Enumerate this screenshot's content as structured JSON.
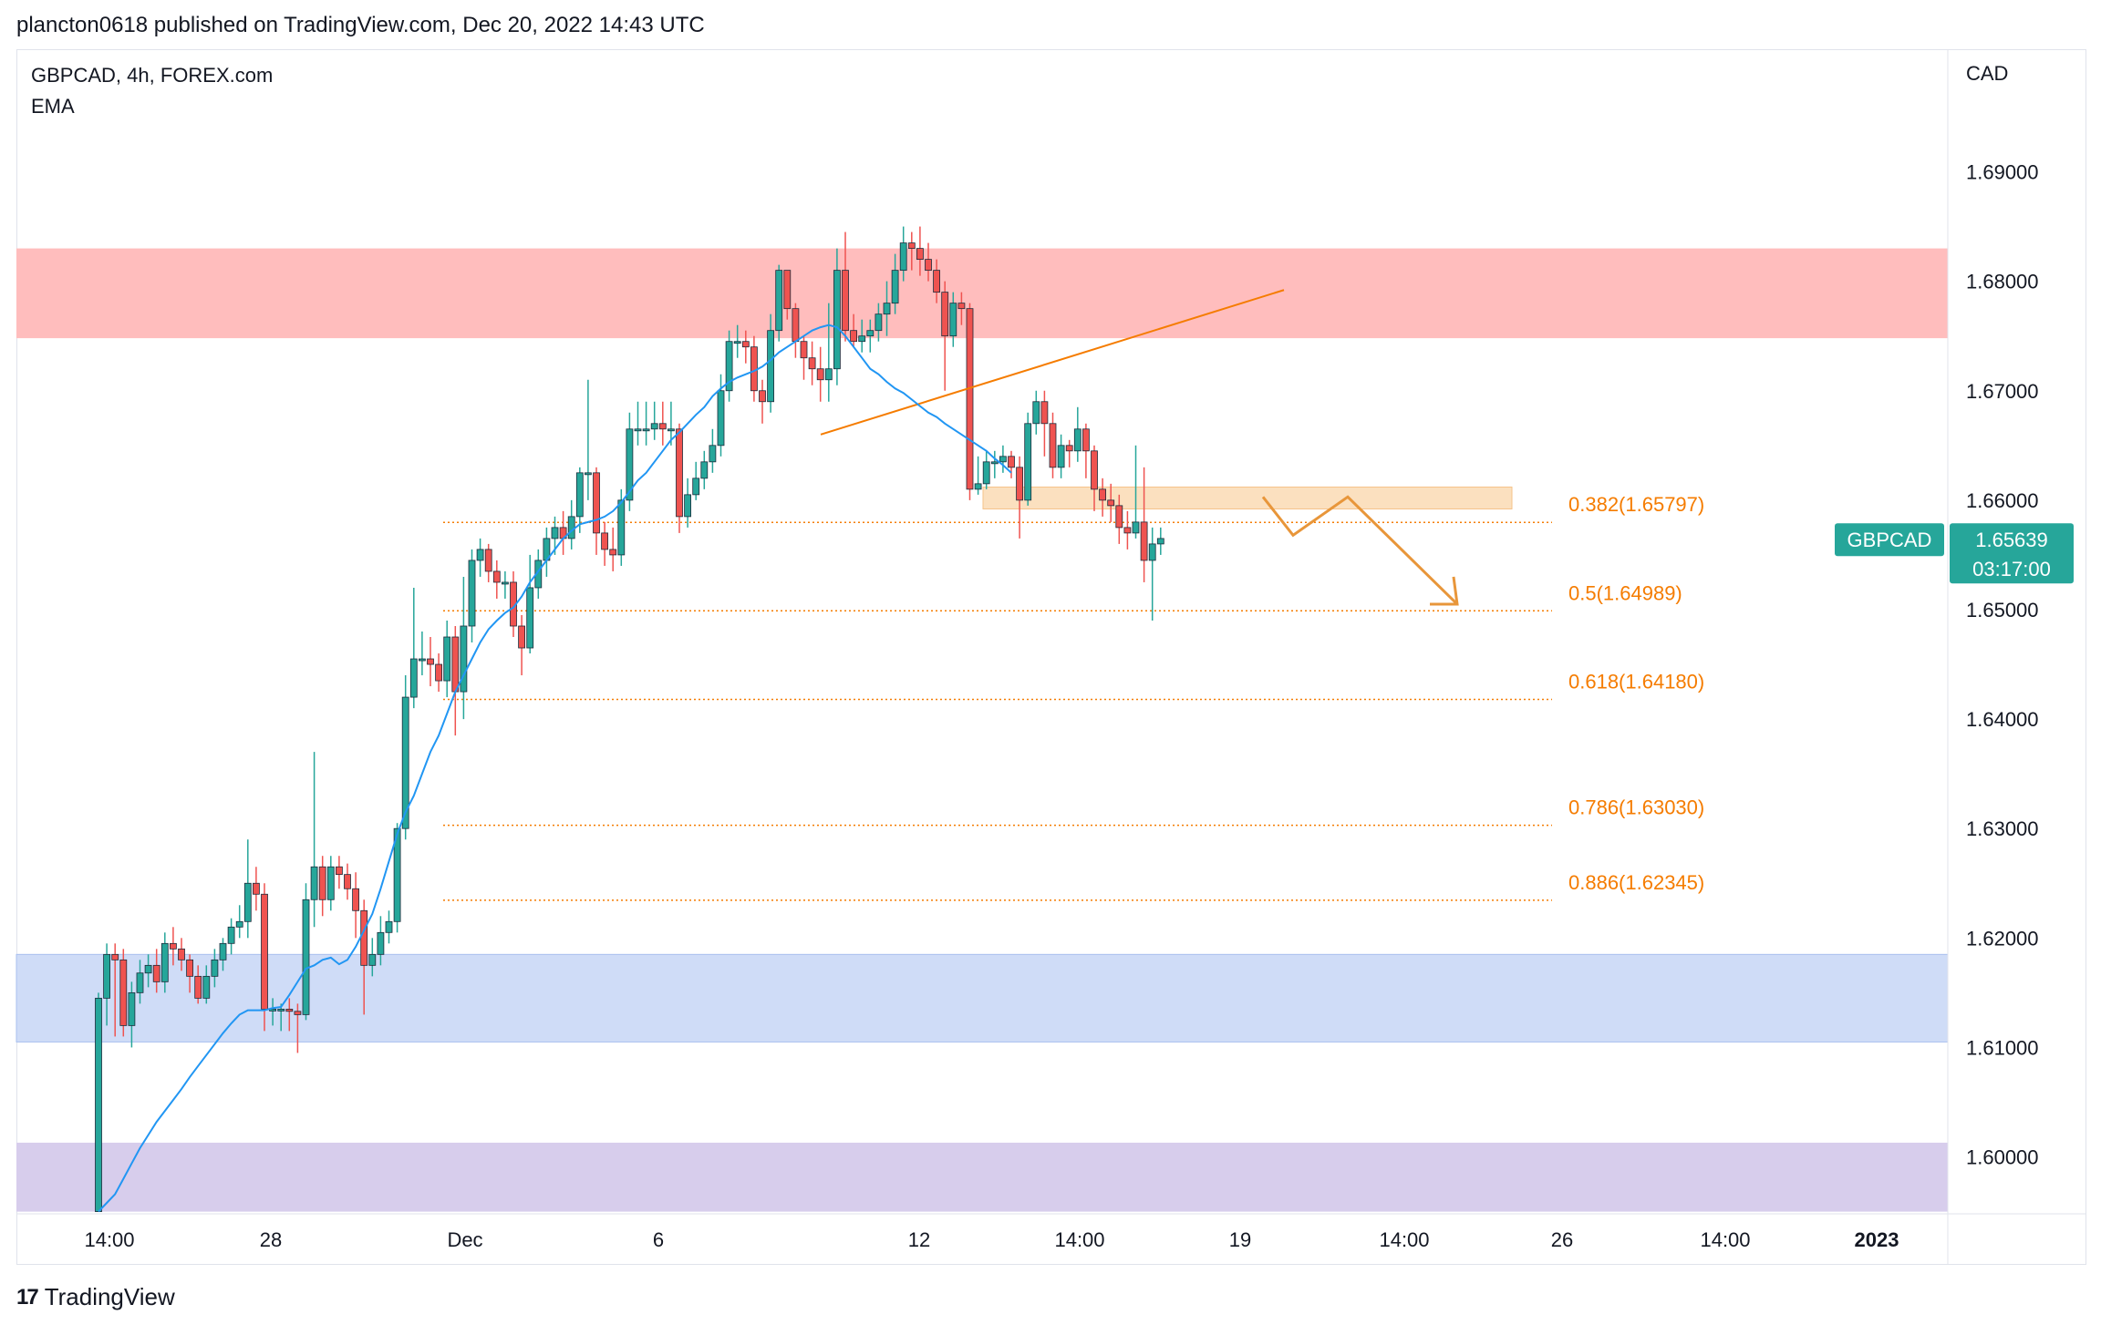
{
  "header": {
    "published": "plancton0618 published on TradingView.com, Dec 20, 2022 14:43 UTC"
  },
  "legend": {
    "symbol": "GBPCAD, 4h, FOREX.com",
    "indicator": "EMA"
  },
  "footer": {
    "brand": "TradingView",
    "logo_mark": "17"
  },
  "colors": {
    "up": "#26a69a",
    "down": "#ef5350",
    "ema": "#2196f3",
    "resistance_zone": "#ffbdbd",
    "support_zone": "#cfdcf7",
    "bottom_zone": "#d7cdec",
    "orange": "#f57c00",
    "price_badge": "#26a69a"
  },
  "chart_data": {
    "type": "candlestick",
    "title": "GBPCAD, 4h, FOREX.com",
    "currency_label": "CAD",
    "ylim": [
      1.5948,
      1.7012
    ],
    "y_ticks": [
      "1.69000",
      "1.68000",
      "1.67000",
      "1.66000",
      "1.65000",
      "1.64000",
      "1.63000",
      "1.62000",
      "1.61000",
      "1.60000"
    ],
    "x_ticks": [
      "14:00",
      "28",
      "Dec",
      "6",
      "12",
      "14:00",
      "19",
      "14:00",
      "26",
      "14:00",
      "2023"
    ],
    "last_price": {
      "symbol": "GBPCAD",
      "value": "1.65639",
      "countdown": "03:17:00"
    },
    "zones": [
      {
        "name": "resistance",
        "low": 1.6748,
        "high": 1.683
      },
      {
        "name": "support",
        "low": 1.6105,
        "high": 1.6185
      },
      {
        "name": "lower",
        "low": 1.595,
        "high": 1.6013
      },
      {
        "name": "retest",
        "low": 1.6592,
        "high": 1.6612
      }
    ],
    "fib_levels": [
      {
        "label": "0.382(1.65797)",
        "value": 1.65797
      },
      {
        "label": "0.5(1.64989)",
        "value": 1.64989
      },
      {
        "label": "0.618(1.64180)",
        "value": 1.6418
      },
      {
        "label": "0.786(1.63030)",
        "value": 1.6303
      },
      {
        "label": "0.886(1.62345)",
        "value": 1.62345
      }
    ],
    "trendline": {
      "from": [
        0,
        1.666
      ],
      "to": [
        1,
        1.6792
      ]
    },
    "candles": [
      [
        1.595,
        1.6145,
        1.595,
        1.615
      ],
      [
        1.6145,
        1.6185,
        1.612,
        1.6195
      ],
      [
        1.6185,
        1.618,
        1.611,
        1.6195
      ],
      [
        1.618,
        1.612,
        1.611,
        1.619
      ],
      [
        1.612,
        1.615,
        1.61,
        1.616
      ],
      [
        1.615,
        1.6168,
        1.614,
        1.618
      ],
      [
        1.6168,
        1.6175,
        1.6155,
        1.6185
      ],
      [
        1.6175,
        1.616,
        1.615,
        1.619
      ],
      [
        1.616,
        1.6195,
        1.615,
        1.6205
      ],
      [
        1.6195,
        1.619,
        1.6175,
        1.621
      ],
      [
        1.619,
        1.618,
        1.617,
        1.62
      ],
      [
        1.618,
        1.6165,
        1.615,
        1.6185
      ],
      [
        1.6165,
        1.6145,
        1.614,
        1.6175
      ],
      [
        1.6145,
        1.6165,
        1.614,
        1.6175
      ],
      [
        1.6165,
        1.618,
        1.6155,
        1.619
      ],
      [
        1.618,
        1.6195,
        1.617,
        1.62
      ],
      [
        1.6195,
        1.621,
        1.6185,
        1.6218
      ],
      [
        1.621,
        1.6215,
        1.62,
        1.623
      ],
      [
        1.6215,
        1.625,
        1.62,
        1.629
      ],
      [
        1.625,
        1.624,
        1.6225,
        1.6265
      ],
      [
        1.624,
        1.6135,
        1.6115,
        1.625
      ],
      [
        1.6135,
        1.6135,
        1.612,
        1.6145
      ],
      [
        1.6135,
        1.6135,
        1.6115,
        1.614
      ],
      [
        1.6135,
        1.6133,
        1.6115,
        1.6145
      ],
      [
        1.6133,
        1.613,
        1.6095,
        1.614
      ],
      [
        1.613,
        1.6235,
        1.6125,
        1.625
      ],
      [
        1.6235,
        1.6265,
        1.621,
        1.637
      ],
      [
        1.6265,
        1.6235,
        1.622,
        1.6275
      ],
      [
        1.6235,
        1.6265,
        1.6225,
        1.6275
      ],
      [
        1.6265,
        1.6258,
        1.6245,
        1.6275
      ],
      [
        1.6258,
        1.6245,
        1.6235,
        1.6268
      ],
      [
        1.6245,
        1.6225,
        1.62,
        1.626
      ],
      [
        1.6225,
        1.6175,
        1.613,
        1.6235
      ],
      [
        1.6175,
        1.6185,
        1.6165,
        1.62
      ],
      [
        1.6185,
        1.6205,
        1.6175,
        1.622
      ],
      [
        1.6205,
        1.6215,
        1.6195,
        1.6225
      ],
      [
        1.6215,
        1.63,
        1.6205,
        1.6305
      ],
      [
        1.63,
        1.642,
        1.629,
        1.644
      ],
      [
        1.642,
        1.6455,
        1.641,
        1.652
      ],
      [
        1.6455,
        1.6455,
        1.644,
        1.648
      ],
      [
        1.6455,
        1.645,
        1.643,
        1.6475
      ],
      [
        1.645,
        1.6435,
        1.6425,
        1.646
      ],
      [
        1.6435,
        1.6475,
        1.642,
        1.649
      ],
      [
        1.6475,
        1.6425,
        1.6385,
        1.6485
      ],
      [
        1.6425,
        1.6485,
        1.64,
        1.653
      ],
      [
        1.6485,
        1.6545,
        1.647,
        1.6555
      ],
      [
        1.6545,
        1.6555,
        1.653,
        1.6565
      ],
      [
        1.6555,
        1.6535,
        1.6525,
        1.656
      ],
      [
        1.6535,
        1.6525,
        1.651,
        1.6545
      ],
      [
        1.6525,
        1.6525,
        1.651,
        1.6535
      ],
      [
        1.6525,
        1.6485,
        1.6475,
        1.6535
      ],
      [
        1.6485,
        1.6465,
        1.644,
        1.6495
      ],
      [
        1.6465,
        1.652,
        1.646,
        1.655
      ],
      [
        1.652,
        1.6545,
        1.651,
        1.6555
      ],
      [
        1.6545,
        1.6565,
        1.653,
        1.6575
      ],
      [
        1.6565,
        1.6575,
        1.655,
        1.6585
      ],
      [
        1.6575,
        1.6565,
        1.655,
        1.659
      ],
      [
        1.6565,
        1.6585,
        1.6555,
        1.66
      ],
      [
        1.6585,
        1.6625,
        1.657,
        1.663
      ],
      [
        1.6625,
        1.6625,
        1.66,
        1.671
      ],
      [
        1.6625,
        1.657,
        1.655,
        1.663
      ],
      [
        1.657,
        1.6555,
        1.654,
        1.658
      ],
      [
        1.6555,
        1.655,
        1.6535,
        1.6575
      ],
      [
        1.655,
        1.66,
        1.654,
        1.661
      ],
      [
        1.66,
        1.6665,
        1.659,
        1.668
      ],
      [
        1.6665,
        1.6665,
        1.665,
        1.669
      ],
      [
        1.6665,
        1.6665,
        1.665,
        1.669
      ],
      [
        1.6665,
        1.667,
        1.6655,
        1.669
      ],
      [
        1.667,
        1.6665,
        1.665,
        1.669
      ],
      [
        1.6665,
        1.6665,
        1.665,
        1.669
      ],
      [
        1.6665,
        1.6585,
        1.657,
        1.667
      ],
      [
        1.6585,
        1.6605,
        1.6575,
        1.662
      ],
      [
        1.6605,
        1.662,
        1.66,
        1.6635
      ],
      [
        1.662,
        1.6635,
        1.661,
        1.6645
      ],
      [
        1.6635,
        1.665,
        1.6625,
        1.6665
      ],
      [
        1.665,
        1.67,
        1.664,
        1.6715
      ],
      [
        1.67,
        1.6745,
        1.669,
        1.6755
      ],
      [
        1.6745,
        1.6745,
        1.673,
        1.676
      ],
      [
        1.6745,
        1.674,
        1.6725,
        1.6755
      ],
      [
        1.674,
        1.67,
        1.669,
        1.675
      ],
      [
        1.67,
        1.669,
        1.667,
        1.671
      ],
      [
        1.669,
        1.6755,
        1.668,
        1.677
      ],
      [
        1.6755,
        1.681,
        1.6745,
        1.6815
      ],
      [
        1.681,
        1.6775,
        1.6765,
        1.681
      ],
      [
        1.6775,
        1.6745,
        1.673,
        1.678
      ],
      [
        1.6745,
        1.673,
        1.671,
        1.675
      ],
      [
        1.673,
        1.672,
        1.6705,
        1.6745
      ],
      [
        1.672,
        1.671,
        1.669,
        1.674
      ],
      [
        1.671,
        1.672,
        1.669,
        1.678
      ],
      [
        1.672,
        1.681,
        1.6705,
        1.683
      ],
      [
        1.681,
        1.6755,
        1.6745,
        1.6845
      ],
      [
        1.6755,
        1.6745,
        1.674,
        1.677
      ],
      [
        1.6745,
        1.675,
        1.6735,
        1.6765
      ],
      [
        1.675,
        1.6755,
        1.6735,
        1.6765
      ],
      [
        1.6755,
        1.677,
        1.6745,
        1.678
      ],
      [
        1.677,
        1.678,
        1.675,
        1.68
      ],
      [
        1.678,
        1.681,
        1.677,
        1.6825
      ],
      [
        1.681,
        1.6835,
        1.68,
        1.685
      ],
      [
        1.6835,
        1.683,
        1.681,
        1.6845
      ],
      [
        1.683,
        1.682,
        1.6805,
        1.685
      ],
      [
        1.682,
        1.681,
        1.68,
        1.6835
      ],
      [
        1.681,
        1.679,
        1.678,
        1.682
      ],
      [
        1.679,
        1.675,
        1.67,
        1.68
      ],
      [
        1.675,
        1.678,
        1.674,
        1.679
      ],
      [
        1.678,
        1.6775,
        1.676,
        1.679
      ],
      [
        1.6775,
        1.661,
        1.66,
        1.678
      ],
      [
        1.661,
        1.6615,
        1.6605,
        1.664
      ],
      [
        1.6615,
        1.6635,
        1.661,
        1.6645
      ],
      [
        1.6635,
        1.6635,
        1.662,
        1.6645
      ],
      [
        1.6635,
        1.664,
        1.6625,
        1.665
      ],
      [
        1.664,
        1.663,
        1.662,
        1.6645
      ],
      [
        1.663,
        1.66,
        1.6565,
        1.664
      ],
      [
        1.66,
        1.667,
        1.6595,
        1.668
      ],
      [
        1.667,
        1.669,
        1.666,
        1.67
      ],
      [
        1.669,
        1.667,
        1.664,
        1.67
      ],
      [
        1.667,
        1.663,
        1.662,
        1.668
      ],
      [
        1.663,
        1.665,
        1.662,
        1.666
      ],
      [
        1.665,
        1.6645,
        1.663,
        1.6655
      ],
      [
        1.6645,
        1.6665,
        1.6635,
        1.6685
      ],
      [
        1.6665,
        1.6645,
        1.662,
        1.667
      ],
      [
        1.6645,
        1.661,
        1.659,
        1.665
      ],
      [
        1.661,
        1.66,
        1.6585,
        1.662
      ],
      [
        1.66,
        1.6595,
        1.658,
        1.6615
      ],
      [
        1.6595,
        1.6575,
        1.656,
        1.6605
      ],
      [
        1.6575,
        1.657,
        1.6555,
        1.659
      ],
      [
        1.657,
        1.658,
        1.6565,
        1.665
      ],
      [
        1.658,
        1.6545,
        1.6525,
        1.663
      ],
      [
        1.6545,
        1.656,
        1.649,
        1.6575
      ],
      [
        1.656,
        1.6565,
        1.655,
        1.6575
      ]
    ],
    "ema": [
      1.595,
      1.5958,
      1.5966,
      1.598,
      1.5994,
      1.6008,
      1.602,
      1.6032,
      1.6042,
      1.6052,
      1.6062,
      1.6073,
      1.6083,
      1.6093,
      1.6103,
      1.6113,
      1.6122,
      1.613,
      1.6134,
      1.6134,
      1.6134,
      1.6136,
      1.6137,
      1.6148,
      1.616,
      1.6172,
      1.6175,
      1.618,
      1.6182,
      1.6176,
      1.618,
      1.6192,
      1.6207,
      1.6222,
      1.6245,
      1.627,
      1.6295,
      1.6315,
      1.633,
      1.635,
      1.637,
      1.6385,
      1.6405,
      1.6425,
      1.644,
      1.6455,
      1.647,
      1.6482,
      1.649,
      1.6497,
      1.6502,
      1.6512,
      1.6525,
      1.6535,
      1.6545,
      1.6555,
      1.6565,
      1.6572,
      1.6578,
      1.658,
      1.6582,
      1.6585,
      1.659,
      1.6598,
      1.6608,
      1.6618,
      1.6625,
      1.6635,
      1.6645,
      1.6655,
      1.6662,
      1.667,
      1.6678,
      1.6685,
      1.6695,
      1.6702,
      1.6708,
      1.6712,
      1.6715,
      1.6718,
      1.6722,
      1.6728,
      1.6735,
      1.674,
      1.6745,
      1.675,
      1.6755,
      1.6758,
      1.676,
      1.6758,
      1.675,
      1.674,
      1.673,
      1.672,
      1.6715,
      1.6708,
      1.6702,
      1.6698,
      1.6692,
      1.6686,
      1.668,
      1.6676,
      1.667,
      1.6665,
      1.666,
      1.6655,
      1.665,
      1.6645,
      1.6638,
      1.6632,
      1.6625
    ]
  }
}
